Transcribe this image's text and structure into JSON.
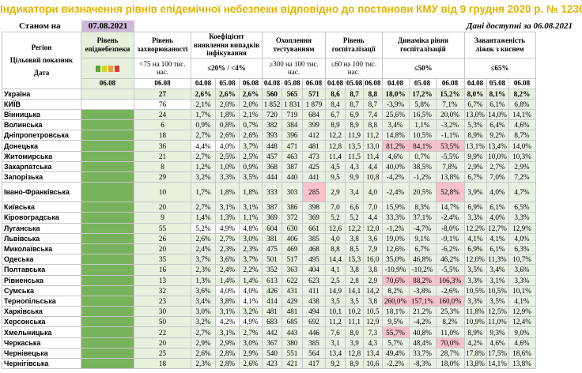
{
  "title": "Індикатори визначення рівнів епідемічної небезпеки відповідно до постанови КМУ від 9 грудня 2020 р. № 1236",
  "status_label": "Станом на",
  "status_date": "07.08.2021",
  "available_text": "Дані доступні за 06.08.2021",
  "headers": {
    "region": "Регіон",
    "target_indicator": "Цільовий показник",
    "date_label": "Дата",
    "risk_level": "Рівень епіднебезпеки",
    "incidence": "Рівень захворюваності",
    "incidence_target": "<75 на 100 тис. нас.",
    "detection": "Коефіцієнт виявлення випадків інфікування",
    "detection_target": "≤20% / <4%",
    "testing": "Охоплення тестуванням",
    "testing_target": "≥300 на 100 тис. нас.",
    "hosp": "Рівень госпіталізації",
    "hosp_target": "≤60 на 100 тис. нас.",
    "dynamics": "Динаміка рівня госпіталізацій",
    "dynamics_target": "≤50%",
    "beds": "Завантаженість ліжок з киснем",
    "beds_target": "≤65%"
  },
  "legend_colors": [
    "#5aa43c",
    "#d7d31b",
    "#e8a23a",
    "#d43a3a"
  ],
  "dates": {
    "risk": "06.08",
    "d3": [
      "04.08",
      "05.08",
      "06.08"
    ]
  },
  "rows": [
    {
      "name": "Україна",
      "incidence": "27",
      "det": [
        "2,6%",
        "2,6%",
        "2,6%"
      ],
      "test": [
        "560",
        "565",
        "571"
      ],
      "hosp": [
        "8,6",
        "8,7",
        "8,8"
      ],
      "dyn": [
        "18,0%",
        "17,2%",
        "15,2%"
      ],
      "beds": [
        "8,0%",
        "8,1%",
        "8,2%"
      ]
    },
    {
      "name": "КИЇВ",
      "incidence": "76",
      "det": [
        "2,1%",
        "2,0%",
        "2,0%"
      ],
      "test": [
        "1 852",
        "1 831",
        "1 879"
      ],
      "hosp": [
        "8,4",
        "8,7",
        "8,7"
      ],
      "dyn": [
        "-3,9%",
        "5,8%",
        "7,1%"
      ],
      "beds": [
        "6,7%",
        "6,1%",
        "6,8%"
      ]
    },
    {
      "name": "Вінницька",
      "incidence": "24",
      "det": [
        "1,7%",
        "1,8%",
        "2,1%"
      ],
      "test": [
        "720",
        "719",
        "684"
      ],
      "hosp": [
        "6,7",
        "6,9",
        "7,4"
      ],
      "dyn": [
        "25,6%",
        "16,5%",
        "20,0%"
      ],
      "beds": [
        "13,0%",
        "14,0%",
        "14,1%"
      ]
    },
    {
      "name": "Волинська",
      "incidence": "6",
      "det": [
        "0,9%",
        "0,8%",
        "0,7%"
      ],
      "test": [
        "382",
        "384",
        "399"
      ],
      "hosp": [
        "8,9",
        "8,9",
        "8,8"
      ],
      "dyn": [
        "3,4%",
        "1,1%",
        "-3,2%"
      ],
      "beds": [
        "5,3%",
        "6,4%",
        "4,6%"
      ]
    },
    {
      "name": "Дніпропетровська",
      "incidence": "18",
      "det": [
        "2,7%",
        "2,6%",
        "2,6%"
      ],
      "test": [
        "393",
        "396",
        "412"
      ],
      "hosp": [
        "12,2",
        "11,9",
        "11,2"
      ],
      "dyn": [
        "14,8%",
        "10,5%",
        "-1,1%"
      ],
      "beds": [
        "8,9%",
        "9,2%",
        "8,7%"
      ]
    },
    {
      "name": "Донецька",
      "incidence": "36",
      "det": [
        "4,4%",
        "4,0%",
        "3,7%"
      ],
      "test": [
        "448",
        "471",
        "481"
      ],
      "hosp": [
        "12,8",
        "13,5",
        "13,0"
      ],
      "dyn": [
        "81,2%",
        "84,1%",
        "53,5%"
      ],
      "beds": [
        "13,1%",
        "13,4%",
        "14,0%"
      ]
    },
    {
      "name": "Житомирська",
      "incidence": "21",
      "det": [
        "2,7%",
        "2,5%",
        "2,5%"
      ],
      "test": [
        "457",
        "463",
        "473"
      ],
      "hosp": [
        "11,4",
        "11,5",
        "11,4"
      ],
      "dyn": [
        "4,6%",
        "0,7%",
        "-5,5%"
      ],
      "beds": [
        "9,9%",
        "10,0%",
        "10,3%"
      ]
    },
    {
      "name": "Закарпатська",
      "incidence": "8",
      "det": [
        "1,2%",
        "1,0%",
        "0,9%"
      ],
      "test": [
        "368",
        "387",
        "425"
      ],
      "hosp": [
        "4,5",
        "4,3",
        "4,4"
      ],
      "dyn": [
        "40,0%",
        "38,5%",
        "7,8%"
      ],
      "beds": [
        "2,9%",
        "2,7%",
        "2,9%"
      ]
    },
    {
      "name": "Запорізька",
      "incidence": "29",
      "det": [
        "3,2%",
        "3,3%",
        "3,5%"
      ],
      "test": [
        "444",
        "440",
        "441"
      ],
      "hosp": [
        "9,5",
        "9,9",
        "10,8"
      ],
      "dyn": [
        "-4,2%",
        "-1,2%",
        "13,8%"
      ],
      "beds": [
        "6,7%",
        "7,0%",
        "7,2%"
      ]
    },
    {
      "name": "Івано-Франківська",
      "incidence": "10",
      "det": [
        "1,7%",
        "1,8%",
        "1,8%"
      ],
      "test": [
        "333",
        "303",
        "285"
      ],
      "hosp": [
        "2,9",
        "3,4",
        "4,0"
      ],
      "dyn": [
        "-2,4%",
        "20,5%",
        "52,8%"
      ],
      "beds": [
        "3,9%",
        "4,0%",
        "4,7%"
      ]
    },
    {
      "name": "Київська",
      "incidence": "20",
      "det": [
        "2,7%",
        "3,1%",
        "3,1%"
      ],
      "test": [
        "387",
        "386",
        "398"
      ],
      "hosp": [
        "7,0",
        "6,6",
        "7,0"
      ],
      "dyn": [
        "15,9%",
        "8,3%",
        "14,7%"
      ],
      "beds": [
        "6,9%",
        "6,1%",
        "6,5%"
      ]
    },
    {
      "name": "Кіровоградська",
      "incidence": "9",
      "det": [
        "1,4%",
        "1,3%",
        "1,1%"
      ],
      "test": [
        "369",
        "372",
        "369"
      ],
      "hosp": [
        "5,2",
        "5,2",
        "4,4"
      ],
      "dyn": [
        "33,3%",
        "37,1%",
        "-2,4%"
      ],
      "beds": [
        "3,3%",
        "4,0%",
        "3,3%"
      ]
    },
    {
      "name": "Луганська",
      "incidence": "55",
      "det": [
        "5,2%",
        "4,9%",
        "4,8%"
      ],
      "test": [
        "604",
        "630",
        "661"
      ],
      "hosp": [
        "12,6",
        "12,2",
        "12,0"
      ],
      "dyn": [
        "-1,2%",
        "-4,7%",
        "-8,0%"
      ],
      "beds": [
        "12,2%",
        "12,7%",
        "12,9%"
      ]
    },
    {
      "name": "Львівська",
      "incidence": "26",
      "det": [
        "2,6%",
        "2,7%",
        "3,0%"
      ],
      "test": [
        "381",
        "406",
        "385"
      ],
      "hosp": [
        "4,0",
        "3,8",
        "3,6"
      ],
      "dyn": [
        "19,0%",
        "9,1%",
        "-9,1%"
      ],
      "beds": [
        "4,1%",
        "4,1%",
        "4,0%"
      ]
    },
    {
      "name": "Миколаївська",
      "incidence": "20",
      "det": [
        "2,4%",
        "2,3%",
        "2,3%"
      ],
      "test": [
        "475",
        "469",
        "468"
      ],
      "hosp": [
        "8,8",
        "8,5",
        "7,9"
      ],
      "dyn": [
        "12,6%",
        "6,7%",
        "-6,2%"
      ],
      "beds": [
        "6,9%",
        "6,1%",
        "6,3%"
      ]
    },
    {
      "name": "Одеська",
      "incidence": "35",
      "det": [
        "3,7%",
        "3,6%",
        "3,7%"
      ],
      "test": [
        "501",
        "517",
        "495"
      ],
      "hosp": [
        "14,4",
        "15,3",
        "16,0"
      ],
      "dyn": [
        "35,0%",
        "46,8%",
        "46,2%"
      ],
      "beds": [
        "12,0%",
        "11,3%",
        "10,7%"
      ]
    },
    {
      "name": "Полтавська",
      "incidence": "16",
      "det": [
        "2,3%",
        "2,4%",
        "2,2%"
      ],
      "test": [
        "352",
        "363",
        "404"
      ],
      "hosp": [
        "4,1",
        "3,8",
        "3,8"
      ],
      "dyn": [
        "-10,9%",
        "-10,2%",
        "-5,5%"
      ],
      "beds": [
        "3,5%",
        "3,4%",
        "3,6%"
      ]
    },
    {
      "name": "Рівненська",
      "incidence": "13",
      "det": [
        "1,3%",
        "1,4%",
        "1,4%"
      ],
      "test": [
        "613",
        "622",
        "623"
      ],
      "hosp": [
        "2,5",
        "2,8",
        "2,9"
      ],
      "dyn": [
        "70,6%",
        "88,2%",
        "106,3%"
      ],
      "beds": [
        "3,3%",
        "3,1%",
        "3,3%"
      ]
    },
    {
      "name": "Сумська",
      "incidence": "32",
      "det": [
        "3,6%",
        "4,0%",
        "4,0%"
      ],
      "test": [
        "426",
        "431",
        "411"
      ],
      "hosp": [
        "14,9",
        "14,1",
        "14,2"
      ],
      "dyn": [
        "8,2%",
        "-3,8%",
        "-2,6%"
      ],
      "beds": [
        "10,5%",
        "10,5%",
        "10,1%"
      ]
    },
    {
      "name": "Тернопільська",
      "incidence": "23",
      "det": [
        "3,4%",
        "3,8%",
        "4,1%"
      ],
      "test": [
        "414",
        "429",
        "438"
      ],
      "hosp": [
        "3,5",
        "3,5",
        "3,8"
      ],
      "dyn": [
        "260,0%",
        "157,1%",
        "160,0%"
      ],
      "beds": [
        "3,3%",
        "3,5%",
        "4,1%"
      ]
    },
    {
      "name": "Харківська",
      "incidence": "30",
      "det": [
        "3,0%",
        "3,1%",
        "3,2%"
      ],
      "test": [
        "481",
        "481",
        "494"
      ],
      "hosp": [
        "10,1",
        "10,2",
        "10,5"
      ],
      "dyn": [
        "18,1%",
        "21,2%",
        "25,3%"
      ],
      "beds": [
        "11,8%",
        "12,5%",
        "12,9%"
      ]
    },
    {
      "name": "Херсонська",
      "incidence": "50",
      "det": [
        "3,2%",
        "4,2%",
        "4,9%"
      ],
      "test": [
        "683",
        "685",
        "692"
      ],
      "hosp": [
        "11,2",
        "11,1",
        "12,9"
      ],
      "dyn": [
        "9,5%",
        "-4,2%",
        "8,2%"
      ],
      "beds": [
        "10,9%",
        "11,0%",
        "12,4%"
      ]
    },
    {
      "name": "Хмельницька",
      "incidence": "22",
      "det": [
        "2,7%",
        "3,1%",
        "2,7%"
      ],
      "test": [
        "442",
        "443",
        "446"
      ],
      "hosp": [
        "7,6",
        "8,0",
        "7,3"
      ],
      "dyn": [
        "55,7%",
        "40,8%",
        "11,0%"
      ],
      "beds": [
        "8,9%",
        "9,3%",
        "9,0%"
      ]
    },
    {
      "name": "Черкаська",
      "incidence": "20",
      "det": [
        "2,9%",
        "2,9%",
        "3,0%"
      ],
      "test": [
        "367",
        "380",
        "385"
      ],
      "hosp": [
        "3,1",
        "3,9",
        "4,3"
      ],
      "dyn": [
        "5,7%",
        "48,4%",
        "70,0%"
      ],
      "beds": [
        "4,2%",
        "4,6%",
        "4,6%"
      ]
    },
    {
      "name": "Чернівецька",
      "incidence": "25",
      "det": [
        "2,6%",
        "2,8%",
        "2,9%"
      ],
      "test": [
        "540",
        "551",
        "564"
      ],
      "hosp": [
        "13,4",
        "12,8",
        "13,4"
      ],
      "dyn": [
        "49,4%",
        "33,7%",
        "28,7%"
      ],
      "beds": [
        "17,8%",
        "17,5%",
        "18,6%"
      ]
    },
    {
      "name": "Чернігівська",
      "incidence": "18",
      "det": [
        "2,3%",
        "2,8%",
        "2,6%"
      ],
      "test": [
        "423",
        "421",
        "417"
      ],
      "hosp": [
        "9,2",
        "8,9",
        "10,6"
      ],
      "dyn": [
        "-2,2%",
        "-8,3%",
        "18,0%"
      ],
      "beds": [
        "13,8%",
        "14,1%",
        "13,8%"
      ]
    }
  ],
  "alerts": {
    "Донецька": {
      "dyn": [
        0,
        1,
        2
      ]
    },
    "Івано-Франківська": {
      "test": [
        2
      ],
      "dyn": [
        2
      ]
    },
    "Рівненська": {
      "dyn": [
        0,
        1,
        2
      ]
    },
    "Тернопільська": {
      "dyn": [
        0,
        1,
        2
      ]
    },
    "Хмельницька": {
      "dyn": [
        0
      ]
    },
    "Черкаська": {
      "dyn": [
        2
      ]
    }
  },
  "white_cells": {
    "КИЇВ": {
      "incidence": true
    },
    "Донецька": {
      "det": [
        0,
        1
      ]
    },
    "Луганська": {
      "det": [
        0,
        1,
        2
      ]
    },
    "Сумська": {
      "det": [
        1,
        2
      ]
    },
    "Тернопільська": {
      "det": [
        2
      ]
    },
    "Херсонська": {
      "det": [
        1,
        2
      ]
    }
  }
}
